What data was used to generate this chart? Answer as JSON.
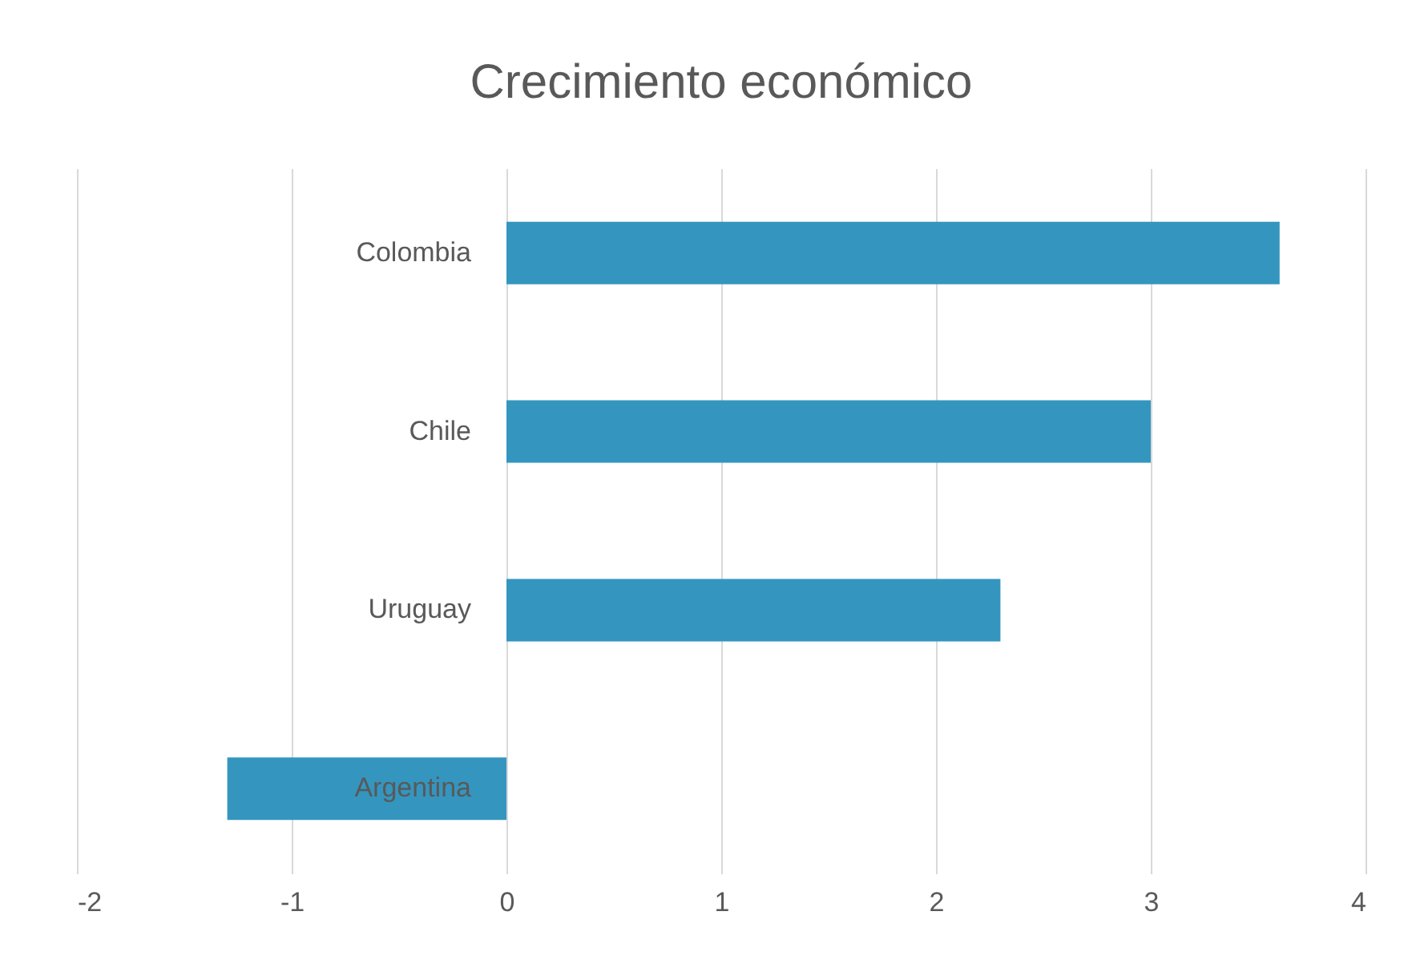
{
  "chart_data": {
    "type": "bar",
    "orientation": "horizontal",
    "title": "Crecimiento económico",
    "categories": [
      "Colombia",
      "Chile",
      "Uruguay",
      "Argentina"
    ],
    "values": [
      3.6,
      3.0,
      2.3,
      -1.3
    ],
    "color": "#3496bf",
    "xlim": [
      -2,
      4
    ],
    "xticks": [
      -2,
      -1,
      0,
      1,
      2,
      3,
      4
    ],
    "grid": "x"
  }
}
